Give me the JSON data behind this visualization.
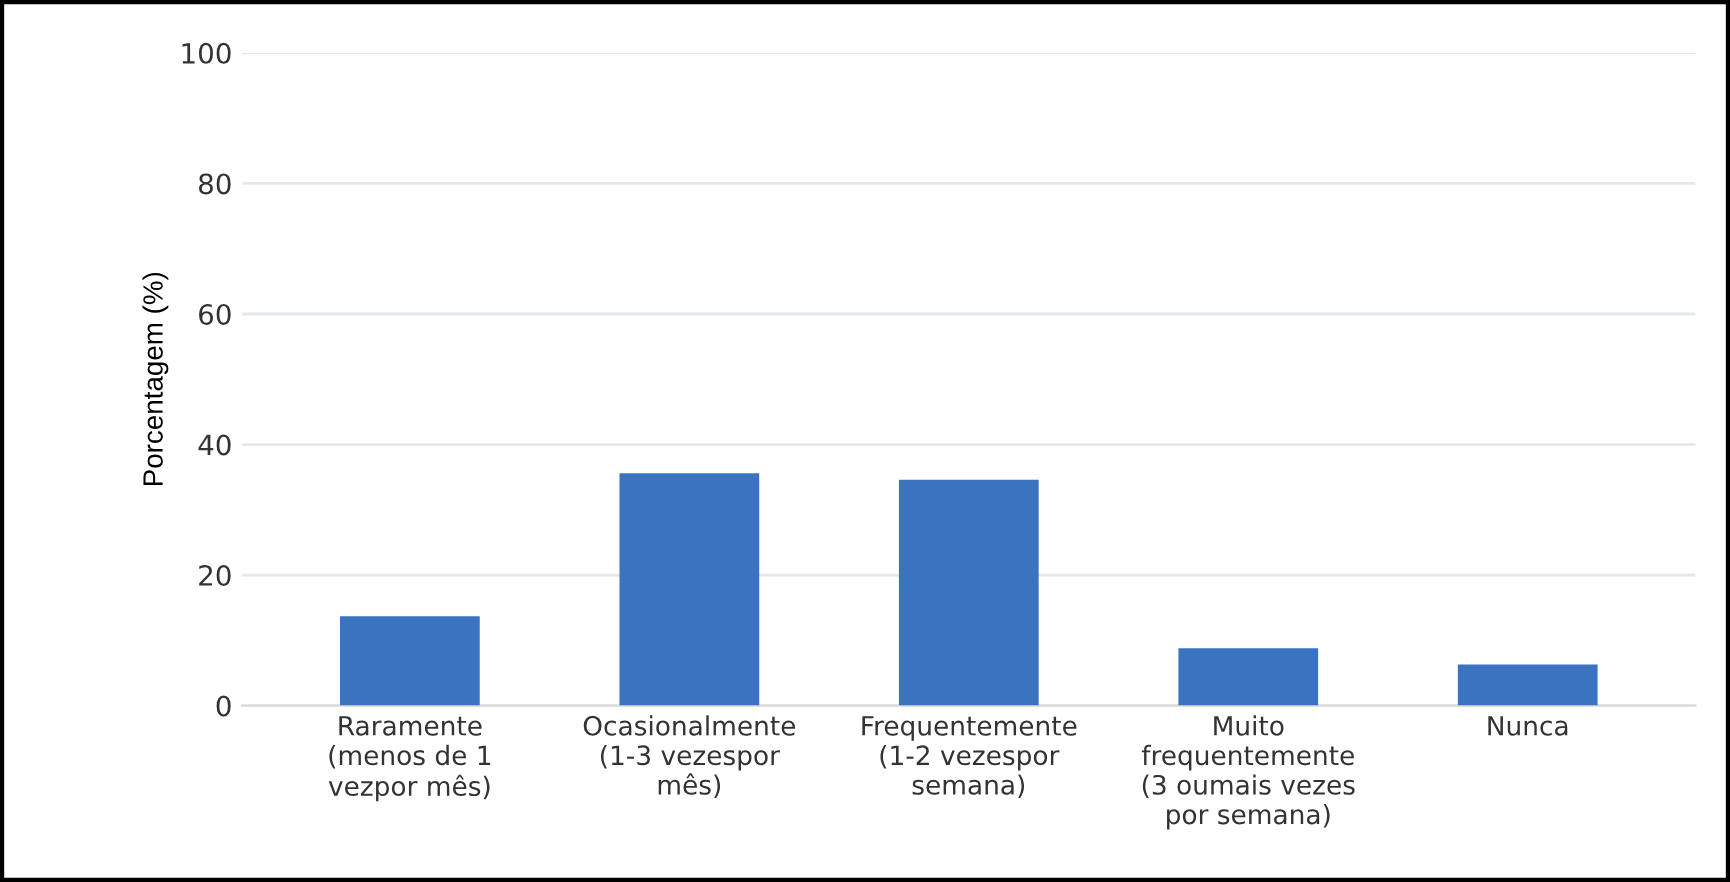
{
  "chart_data": {
    "type": "bar",
    "ylabel": "Porcentagem (%)",
    "categories": [
      "Raramente\n(menos de 1\nvezpor mês)",
      "Ocasionalmente\n(1-3 vezespor\nmês)",
      "Frequentemente\n(1-2 vezespor\nsemana)",
      "Muito\nfrequentemente\n(3 oumais vezes\npor semana)",
      "Nunca"
    ],
    "values": [
      13.7,
      35.6,
      34.6,
      8.8,
      6.3
    ],
    "color": "#3a74c0",
    "ylim": [
      0,
      100
    ],
    "yticks": [
      0,
      20,
      40,
      60,
      80,
      100
    ],
    "grid": "y"
  }
}
